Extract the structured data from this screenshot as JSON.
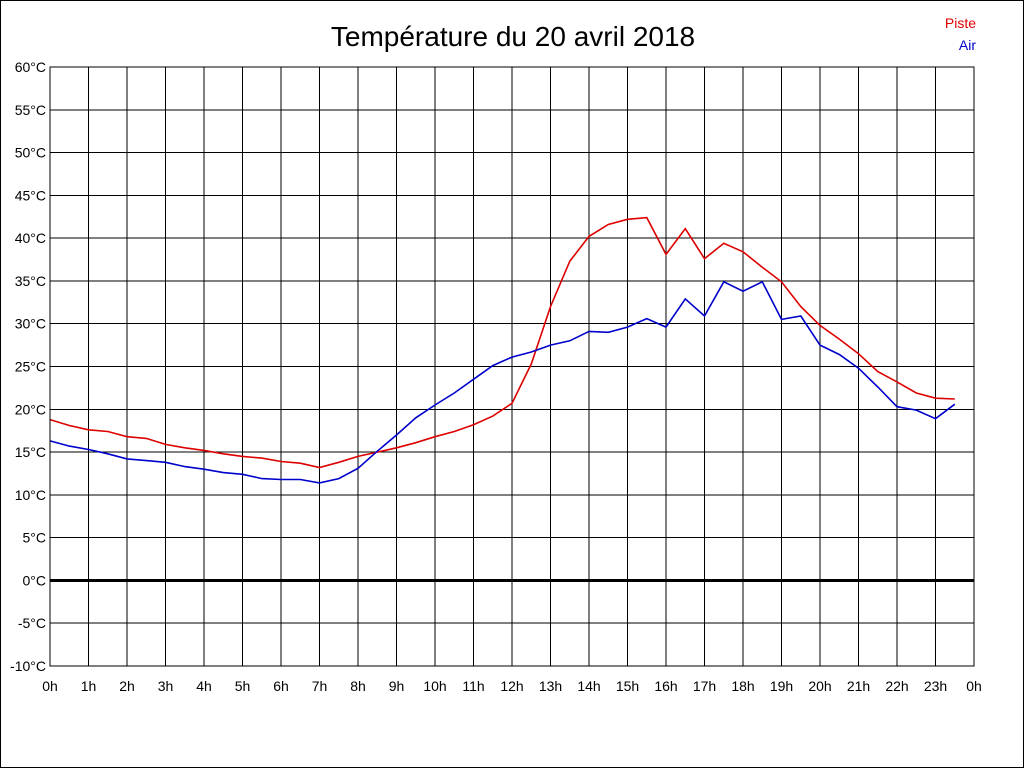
{
  "chart_data": {
    "type": "line",
    "title": "Température du 20 avril 2018",
    "xlabel": "",
    "ylabel": "",
    "ylim": [
      -10,
      60
    ],
    "y_ticks": [
      -10,
      -5,
      0,
      5,
      10,
      15,
      20,
      25,
      30,
      35,
      40,
      45,
      50,
      55,
      60
    ],
    "y_tick_labels": [
      "-10°C",
      "-5°C",
      "0°C",
      "5°C",
      "10°C",
      "15°C",
      "20°C",
      "25°C",
      "30°C",
      "35°C",
      "40°C",
      "45°C",
      "50°C",
      "55°C",
      "60°C"
    ],
    "x_tick_labels": [
      "0h",
      "1h",
      "2h",
      "3h",
      "4h",
      "5h",
      "6h",
      "7h",
      "8h",
      "9h",
      "10h",
      "11h",
      "12h",
      "13h",
      "14h",
      "15h",
      "16h",
      "17h",
      "18h",
      "19h",
      "20h",
      "21h",
      "22h",
      "23h",
      "0h"
    ],
    "xlim": [
      0,
      24
    ],
    "grid": "on",
    "legend": "top-right",
    "x": [
      0,
      0.5,
      1,
      1.5,
      2,
      2.5,
      3,
      3.5,
      4,
      4.5,
      5,
      5.5,
      6,
      6.5,
      7,
      7.5,
      8,
      8.5,
      9,
      9.5,
      10,
      10.5,
      11,
      11.5,
      12,
      12.5,
      13,
      13.5,
      14,
      14.5,
      15,
      15.5,
      16,
      16.5,
      17,
      17.5,
      18,
      18.5,
      19,
      19.5,
      20,
      20.5,
      21,
      21.5,
      22,
      22.5,
      23,
      23.5
    ],
    "series": [
      {
        "name": "Piste",
        "color": "#dd0000",
        "values": [
          18.8,
          18.1,
          17.6,
          17.4,
          16.8,
          16.6,
          15.9,
          15.5,
          15.2,
          14.8,
          14.5,
          14.3,
          13.9,
          13.7,
          13.2,
          13.8,
          14.5,
          15.0,
          15.5,
          16.1,
          16.8,
          17.4,
          18.2,
          19.2,
          20.7,
          25.3,
          32.0,
          37.3,
          40.2,
          41.6,
          42.2,
          42.4,
          38.1,
          41.1,
          37.6,
          39.4,
          38.4,
          36.6,
          34.9,
          32.0,
          29.8,
          28.2,
          26.5,
          24.4,
          23.2,
          21.9,
          21.3,
          21.2
        ]
      },
      {
        "name": "Air",
        "color": "#0000cc",
        "values": [
          16.3,
          15.7,
          15.3,
          14.8,
          14.2,
          14.0,
          13.8,
          13.3,
          13.0,
          12.6,
          12.4,
          11.9,
          11.8,
          11.8,
          11.4,
          11.9,
          13.1,
          15.1,
          17.0,
          19.0,
          20.5,
          21.9,
          23.5,
          25.1,
          26.1,
          26.7,
          27.5,
          28.0,
          29.1,
          29.0,
          29.6,
          30.6,
          29.6,
          32.9,
          30.9,
          34.9,
          33.8,
          34.9,
          30.5,
          30.9,
          27.5,
          26.4,
          24.8,
          22.6,
          20.3,
          19.9,
          18.9,
          20.6
        ]
      }
    ]
  }
}
